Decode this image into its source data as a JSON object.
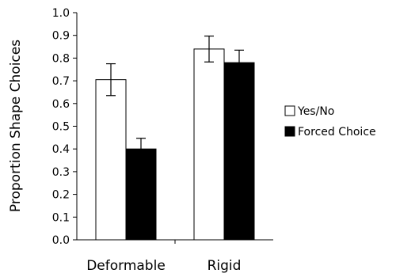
{
  "chart_data": {
    "type": "bar",
    "title": "",
    "xlabel": "",
    "ylabel": "Proportion Shape Choices",
    "ylim": [
      0.0,
      1.0
    ],
    "yticks": [
      "0.0",
      "0.1",
      "0.2",
      "0.3",
      "0.4",
      "0.5",
      "0.6",
      "0.7",
      "0.8",
      "0.9",
      "1.0"
    ],
    "categories": [
      "Deformable",
      "Rigid"
    ],
    "series": [
      {
        "name": "Yes/No",
        "values": [
          0.705,
          0.84
        ],
        "errors": [
          0.07,
          0.057
        ],
        "color": "#ffffff"
      },
      {
        "name": "Forced Choice",
        "values": [
          0.4,
          0.78
        ],
        "errors": [
          0.047,
          0.055
        ],
        "color": "#000000"
      }
    ],
    "legend_position": "right",
    "grid": false
  }
}
